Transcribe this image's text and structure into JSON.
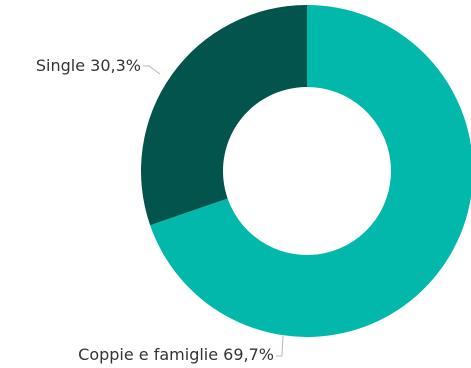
{
  "chart_data": {
    "type": "pie",
    "variant": "donut",
    "slices": [
      {
        "label": "Coppie e famiglie",
        "value": 69.7,
        "display": "69,7%",
        "color": "#01b8aa"
      },
      {
        "label": "Single",
        "value": 30.3,
        "display": "30,3%",
        "color": "#03544d"
      }
    ],
    "title": "",
    "legend": "none",
    "data_labels": "outside with leader lines"
  }
}
